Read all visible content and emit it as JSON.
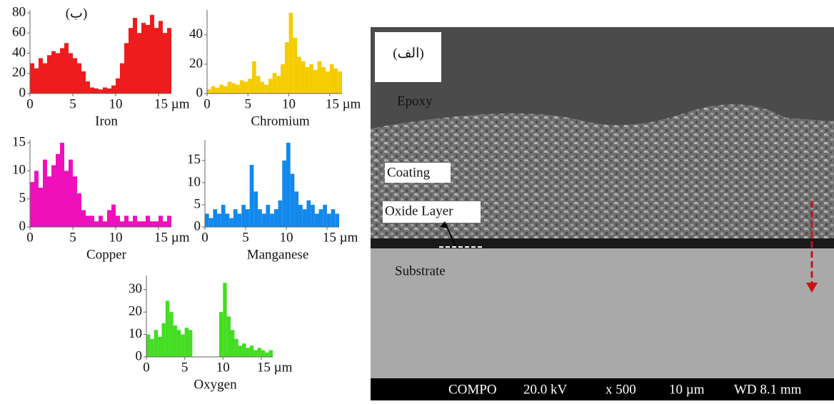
{
  "chart_data": [
    {
      "type": "histogram",
      "panel_label": "(ب)",
      "x_label": "Iron",
      "color": "#ee1c1c",
      "bins": [
        0,
        0.5,
        1,
        1.5,
        2,
        2.5,
        3,
        3.5,
        4,
        4.5,
        5,
        5.5,
        6,
        6.5,
        7,
        7.5,
        8,
        8.5,
        9,
        9.5,
        10,
        10.5,
        11,
        11.5,
        12,
        12.5,
        13,
        13.5,
        14,
        14.5,
        15,
        15.5,
        16,
        16.5
      ],
      "values": [
        30,
        25,
        35,
        30,
        38,
        42,
        40,
        45,
        50,
        40,
        35,
        30,
        22,
        12,
        6,
        5,
        4,
        6,
        5,
        8,
        15,
        30,
        50,
        65,
        75,
        60,
        70,
        68,
        78,
        65,
        72,
        60,
        65
      ],
      "xlim": [
        0,
        16.5
      ],
      "ylim": [
        0,
        80
      ],
      "xticks": [
        0,
        5,
        10,
        {
          "value": 15,
          "label": "15 µm"
        }
      ],
      "yticks": [
        0,
        20,
        40,
        60,
        80
      ]
    },
    {
      "type": "histogram",
      "x_label": "Chromium",
      "color": "#f5cc00",
      "bins": [
        0,
        0.5,
        1,
        1.5,
        2,
        2.5,
        3,
        3.5,
        4,
        4.5,
        5,
        5.5,
        6,
        6.5,
        7,
        7.5,
        8,
        8.5,
        9,
        9.5,
        10,
        10.5,
        11,
        11.5,
        12,
        12.5,
        13,
        13.5,
        14,
        14.5,
        15,
        15.5,
        16,
        16.5
      ],
      "values": [
        3,
        5,
        4,
        6,
        5,
        8,
        7,
        6,
        9,
        8,
        10,
        22,
        12,
        8,
        6,
        10,
        14,
        12,
        20,
        35,
        55,
        38,
        25,
        22,
        18,
        20,
        16,
        22,
        18,
        15,
        20,
        17,
        15
      ],
      "xlim": [
        0,
        16.5
      ],
      "ylim": [
        0,
        55
      ],
      "xticks": [
        0,
        5,
        10,
        {
          "value": 15,
          "label": "15 µm"
        }
      ],
      "yticks": [
        0,
        20,
        40
      ]
    },
    {
      "type": "histogram",
      "x_label": "Copper",
      "color": "#ee11bb",
      "bins": [
        0,
        0.5,
        1,
        1.5,
        2,
        2.5,
        3,
        3.5,
        4,
        4.5,
        5,
        5.5,
        6,
        6.5,
        7,
        7.5,
        8,
        8.5,
        9,
        9.5,
        10,
        10.5,
        11,
        11.5,
        12,
        12.5,
        13,
        13.5,
        14,
        14.5,
        15,
        15.5,
        16,
        16.5
      ],
      "values": [
        8,
        10,
        7,
        12,
        9,
        11,
        13,
        15,
        10,
        12,
        9,
        6,
        3,
        2,
        2,
        1,
        2,
        1,
        3,
        4,
        2,
        1,
        2,
        1,
        2,
        1,
        1,
        2,
        1,
        1,
        2,
        1,
        2
      ],
      "xlim": [
        0,
        16.5
      ],
      "ylim": [
        0,
        15
      ],
      "xticks": [
        0,
        5,
        10,
        {
          "value": 15,
          "label": "15 µm"
        }
      ],
      "yticks": [
        0,
        5,
        10,
        15
      ]
    },
    {
      "type": "histogram",
      "x_label": "Manganese",
      "color": "#1188ee",
      "bins": [
        0,
        0.5,
        1,
        1.5,
        2,
        2.5,
        3,
        3.5,
        4,
        4.5,
        5,
        5.5,
        6,
        6.5,
        7,
        7.5,
        8,
        8.5,
        9,
        9.5,
        10,
        10.5,
        11,
        11.5,
        12,
        12.5,
        13,
        13.5,
        14,
        14.5,
        15,
        15.5,
        16,
        16.5
      ],
      "values": [
        3,
        2,
        4,
        3,
        5,
        3,
        2,
        4,
        3,
        5,
        4,
        14,
        8,
        4,
        3,
        5,
        3,
        4,
        6,
        15,
        19,
        12,
        8,
        5,
        4,
        6,
        5,
        3,
        4,
        5,
        3,
        4,
        3
      ],
      "xlim": [
        0,
        16.5
      ],
      "ylim": [
        0,
        19
      ],
      "xticks": [
        0,
        5,
        10,
        {
          "value": 15,
          "label": "15 µm"
        }
      ],
      "yticks": [
        0,
        5,
        10,
        15
      ]
    },
    {
      "type": "histogram",
      "x_label": "Oxygen",
      "color": "#44dd22",
      "bins": [
        0,
        0.5,
        1,
        1.5,
        2,
        2.5,
        3,
        3.5,
        4,
        4.5,
        5,
        5.5,
        6,
        6.5,
        7,
        7.5,
        8,
        8.5,
        9,
        9.5,
        10,
        10.5,
        11,
        11.5,
        12,
        12.5,
        13,
        13.5,
        14,
        14.5,
        15,
        15.5,
        16,
        16.5
      ],
      "values": [
        10,
        8,
        12,
        9,
        15,
        25,
        20,
        14,
        12,
        10,
        13,
        12,
        0,
        0,
        0,
        0,
        0,
        0,
        0,
        20,
        33,
        18,
        12,
        8,
        5,
        6,
        4,
        5,
        3,
        4,
        3,
        2,
        3
      ],
      "xlim": [
        0,
        16.5
      ],
      "ylim": [
        0,
        35
      ],
      "xticks": [
        0,
        5,
        10,
        {
          "value": 15,
          "label": "15 µm"
        }
      ],
      "yticks": [
        0,
        10,
        20,
        30
      ]
    }
  ],
  "sem_image": {
    "panel_label": "(الف)",
    "epoxy": "Epoxy",
    "coating": "Coating",
    "oxide_layer": "Oxide Layer",
    "substrate": "Substrate",
    "info_bar": [
      "COMPO",
      "20.0 kV",
      "x 500",
      "10 µm",
      "WD 8.1 mm"
    ]
  }
}
